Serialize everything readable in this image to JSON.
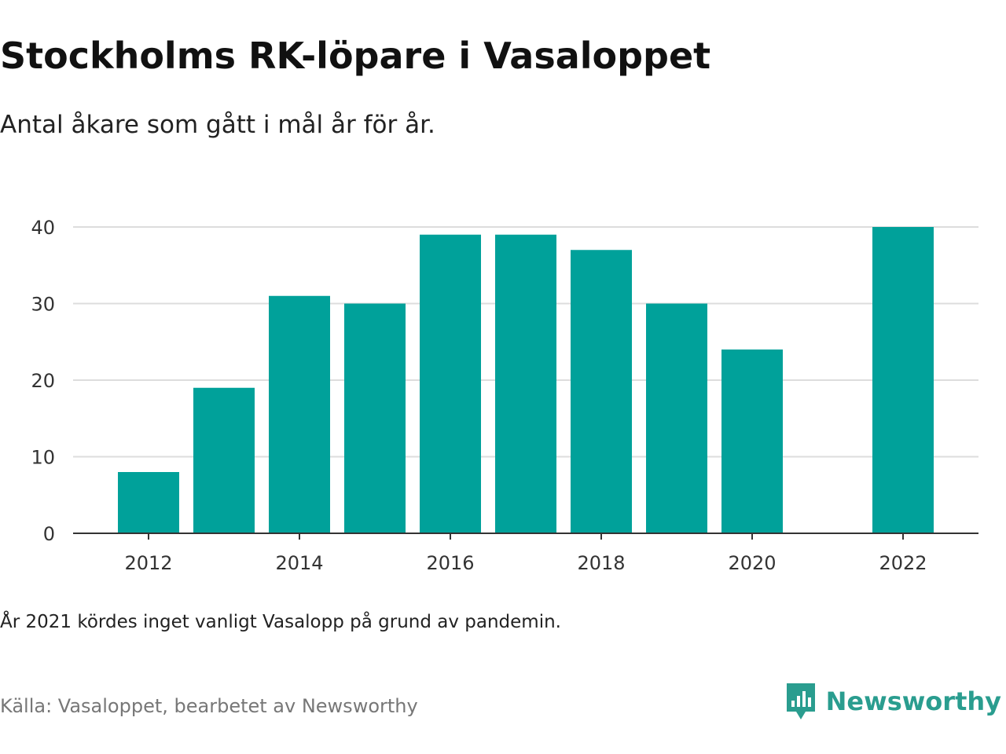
{
  "title": "Stockholms RK-löpare i Vasaloppet",
  "subtitle": "Antal åkare som gått i mål år för år.",
  "note": "År 2021 kördes inget vanligt Vasalopp på grund av pandemin.",
  "source": "Källa: Vasaloppet, bearbetet av Newsworthy",
  "brand": {
    "name": "Newsworthy",
    "icon": "newsworthy-logo-icon",
    "color": "#2a9d8f"
  },
  "colors": {
    "bar": "#00a19a",
    "grid": "#dddddd",
    "axis": "#333333"
  },
  "chart_data": {
    "type": "bar",
    "x": [
      2012,
      2013,
      2014,
      2015,
      2016,
      2017,
      2018,
      2019,
      2020,
      2022
    ],
    "values": [
      8,
      19,
      31,
      30,
      39,
      39,
      37,
      30,
      24,
      40
    ],
    "x_ticks": [
      "2012",
      "2014",
      "2016",
      "2018",
      "2020",
      "2022"
    ],
    "y_ticks": [
      "0",
      "10",
      "20",
      "30",
      "40"
    ],
    "ylim": [
      0,
      40
    ],
    "xlim": [
      2011,
      2023
    ],
    "grid": true,
    "xlabel": "",
    "ylabel": ""
  }
}
